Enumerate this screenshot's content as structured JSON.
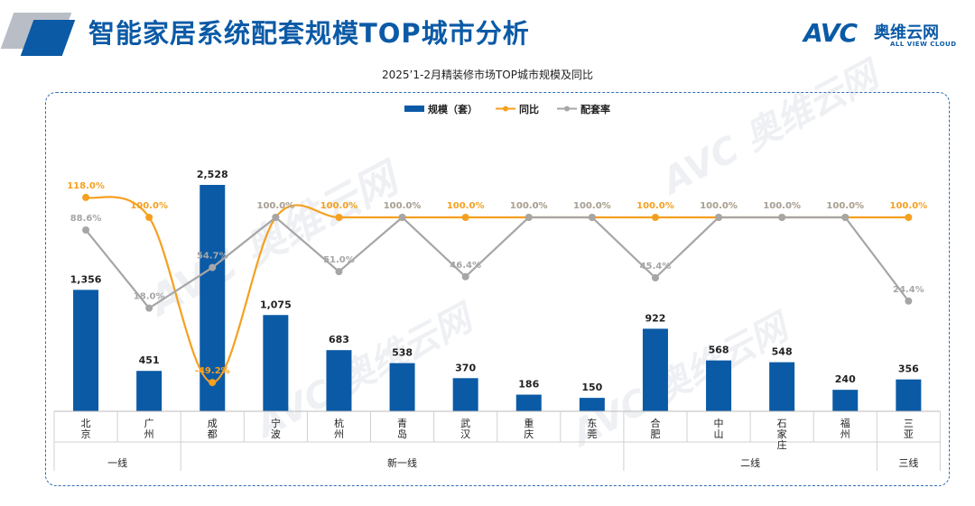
{
  "header": {
    "title": "智能家居系统配套规模TOP城市分析",
    "logo_avc": "AVC",
    "logo_cn": "奥维云网",
    "logo_en": "ALL VIEW CLOUD",
    "brand_color": "#0b5aa6"
  },
  "watermark": {
    "text": "AVC 奥维云网",
    "sub": "ALL VIEW CLOUD"
  },
  "chart_data": {
    "type": "bar",
    "title": "2025’1-2月精装修市场TOP城市规模及同比",
    "categories": [
      "北京",
      "广州",
      "成都",
      "宁波",
      "杭州",
      "青岛",
      "武汉",
      "重庆",
      "东莞",
      "合肥",
      "中山",
      "石家庄",
      "福州",
      "三亚"
    ],
    "category_labels": [
      "北\n京",
      "广\n州",
      "成\n都",
      "宁\n波",
      "杭\n州",
      "青\n岛",
      "武\n汉",
      "重\n庆",
      "东\n莞",
      "合\n肥",
      "中\n山",
      "石\n家\n庄",
      "福\n州",
      "三\n亚"
    ],
    "groups": [
      {
        "label": "一线",
        "start": 0,
        "end": 1
      },
      {
        "label": "新一线",
        "start": 2,
        "end": 8
      },
      {
        "label": "二线",
        "start": 9,
        "end": 12
      },
      {
        "label": "三线",
        "start": 13,
        "end": 13
      }
    ],
    "series": [
      {
        "name": "规模（套）",
        "kind": "bar",
        "color": "#0b5aa6",
        "values": [
          1356,
          451,
          2528,
          1075,
          683,
          538,
          370,
          186,
          150,
          922,
          568,
          548,
          240,
          356
        ],
        "labels": [
          "1,356",
          "451",
          "2,528",
          "1,075",
          "683",
          "538",
          "370",
          "186",
          "150",
          "922",
          "568",
          "548",
          "240",
          "356"
        ]
      },
      {
        "name": "同比",
        "kind": "line",
        "color": "#f5a020",
        "values": [
          118.0,
          100.0,
          -49.2,
          100.0,
          100.0,
          100.0,
          100.0,
          100.0,
          100.0,
          100.0,
          100.0,
          100.0,
          100.0,
          100.0
        ],
        "labels": [
          "118.0%",
          "100.0%",
          "-49.2%",
          "100.0%",
          "100.0%",
          "100.0%",
          "100.0%",
          "100.0%",
          "100.0%",
          "100.0%",
          "100.0%",
          "100.0%",
          "100.0%",
          "100.0%"
        ]
      },
      {
        "name": "配套率",
        "kind": "line",
        "color": "#a6a6a6",
        "values": [
          88.6,
          18.0,
          54.7,
          100.0,
          51.0,
          100.0,
          46.4,
          100.0,
          100.0,
          45.4,
          100.0,
          100.0,
          100.0,
          24.4
        ],
        "labels": [
          "88.6%",
          "18.0%",
          "54.7%",
          "100.0%",
          "51.0%",
          "100.0%",
          "46.4%",
          "100.0%",
          "100.0%",
          "45.4%",
          "100.0%",
          "100.0%",
          "100.0%",
          "24.4%"
        ]
      }
    ],
    "legend_position": "top-center",
    "grid": false
  }
}
